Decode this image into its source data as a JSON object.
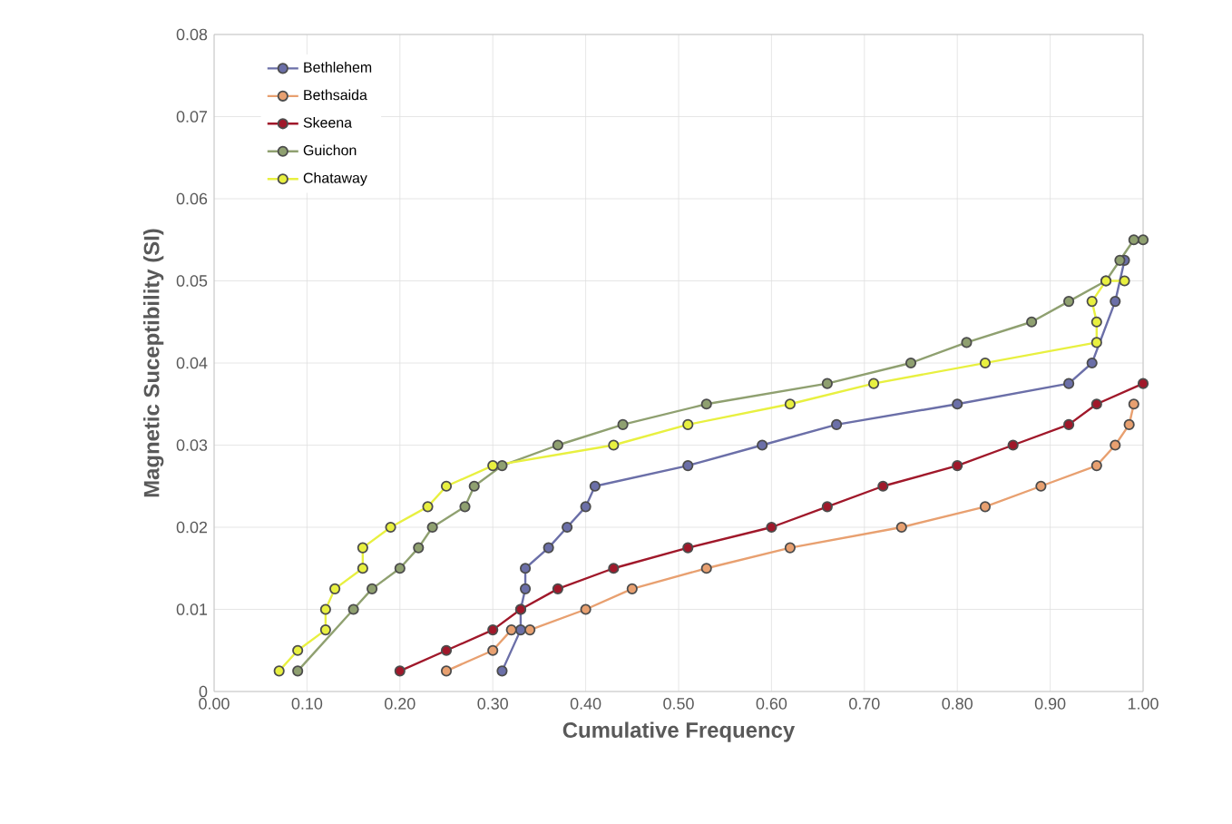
{
  "chart_data": {
    "type": "line",
    "xlabel": "Cumulative  Frequency",
    "ylabel": "Magnetic Suceptibility (SI)",
    "xlim": [
      0,
      1
    ],
    "ylim": [
      0,
      0.08
    ],
    "xticks": [
      {
        "value": 0,
        "label": "0.00"
      },
      {
        "value": 0.1,
        "label": "0.10"
      },
      {
        "value": 0.2,
        "label": "0.20"
      },
      {
        "value": 0.3,
        "label": "0.30"
      },
      {
        "value": 0.4,
        "label": "0.40"
      },
      {
        "value": 0.5,
        "label": "0.50"
      },
      {
        "value": 0.6,
        "label": "0.60"
      },
      {
        "value": 0.7,
        "label": "0.70"
      },
      {
        "value": 0.8,
        "label": "0.80"
      },
      {
        "value": 0.9,
        "label": "0.90"
      },
      {
        "value": 1,
        "label": "1.00"
      }
    ],
    "yticks": [
      0,
      0.01,
      0.02,
      0.03,
      0.04,
      0.05,
      0.06,
      0.07,
      0.08
    ],
    "grid": true,
    "legend": "top left",
    "marker": "circle",
    "line_style": "solid",
    "series": [
      {
        "name": "Bethlehem",
        "color": "#6b6fa8",
        "x": [
          0.31,
          0.33,
          0.33,
          0.335,
          0.335,
          0.36,
          0.38,
          0.4,
          0.41,
          0.51,
          0.59,
          0.67,
          0.8,
          0.92,
          0.945,
          0.97,
          0.98
        ],
        "values": [
          0.0025,
          0.0075,
          0.01,
          0.0125,
          0.015,
          0.0175,
          0.02,
          0.0225,
          0.025,
          0.0275,
          0.03,
          0.0325,
          0.035,
          0.0375,
          0.04,
          0.0475,
          0.0525
        ]
      },
      {
        "name": "Bethsaida",
        "color": "#e8a070",
        "x": [
          0.25,
          0.3,
          0.32,
          0.34,
          0.4,
          0.45,
          0.53,
          0.62,
          0.74,
          0.83,
          0.89,
          0.95,
          0.97,
          0.985,
          0.99
        ],
        "values": [
          0.0025,
          0.005,
          0.0075,
          0.0075,
          0.01,
          0.0125,
          0.015,
          0.0175,
          0.02,
          0.0225,
          0.025,
          0.0275,
          0.03,
          0.0325,
          0.035
        ]
      },
      {
        "name": "Skeena",
        "color": "#a0182a",
        "x": [
          0.2,
          0.25,
          0.3,
          0.33,
          0.37,
          0.43,
          0.51,
          0.6,
          0.66,
          0.72,
          0.8,
          0.86,
          0.92,
          0.95,
          1.0
        ],
        "values": [
          0.0025,
          0.005,
          0.0075,
          0.01,
          0.0125,
          0.015,
          0.0175,
          0.02,
          0.0225,
          0.025,
          0.0275,
          0.03,
          0.0325,
          0.035,
          0.0375
        ]
      },
      {
        "name": "Guichon",
        "color": "#8fa070",
        "x": [
          0.09,
          0.15,
          0.17,
          0.2,
          0.22,
          0.235,
          0.27,
          0.28,
          0.31,
          0.37,
          0.44,
          0.53,
          0.66,
          0.75,
          0.81,
          0.88,
          0.92,
          0.96,
          0.975,
          0.99,
          1.0
        ],
        "values": [
          0.0025,
          0.01,
          0.0125,
          0.015,
          0.0175,
          0.02,
          0.0225,
          0.025,
          0.0275,
          0.03,
          0.0325,
          0.035,
          0.0375,
          0.04,
          0.0425,
          0.045,
          0.0475,
          0.05,
          0.0525,
          0.055,
          0.055
        ]
      },
      {
        "name": "Chataway",
        "color": "#e8f040",
        "x": [
          0.07,
          0.09,
          0.12,
          0.12,
          0.13,
          0.16,
          0.16,
          0.19,
          0.23,
          0.25,
          0.3,
          0.43,
          0.51,
          0.62,
          0.71,
          0.83,
          0.95,
          0.95,
          0.945,
          0.96,
          0.98
        ],
        "values": [
          0.0025,
          0.005,
          0.0075,
          0.01,
          0.0125,
          0.015,
          0.0175,
          0.02,
          0.0225,
          0.025,
          0.0275,
          0.03,
          0.0325,
          0.035,
          0.0375,
          0.04,
          0.0425,
          0.045,
          0.0475,
          0.05,
          0.05
        ]
      }
    ]
  }
}
